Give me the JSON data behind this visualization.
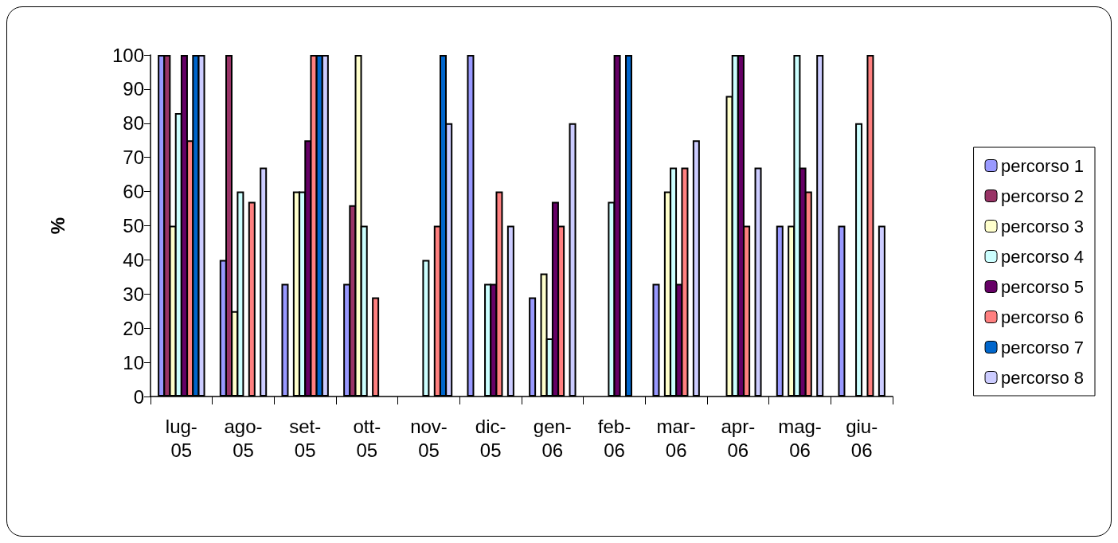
{
  "chart_data": {
    "type": "bar",
    "ylabel": "%",
    "categories": [
      "lug-05",
      "ago-05",
      "set-05",
      "ott-05",
      "nov-05",
      "dic-05",
      "gen-06",
      "feb-06",
      "mar-06",
      "apr-06",
      "mag-06",
      "giu-06"
    ],
    "ylim": [
      0,
      100
    ],
    "yticks": [
      0,
      10,
      20,
      30,
      40,
      50,
      60,
      70,
      80,
      90,
      100
    ],
    "grid": false,
    "legend": "right",
    "series": [
      {
        "name": "percorso 1",
        "color": "#9999ff",
        "values": [
          100,
          40,
          33,
          33,
          null,
          100,
          29,
          null,
          33,
          null,
          50,
          50
        ]
      },
      {
        "name": "percorso 2",
        "color": "#993366",
        "values": [
          100,
          100,
          null,
          56,
          null,
          null,
          null,
          null,
          null,
          null,
          null,
          null
        ]
      },
      {
        "name": "percorso 3",
        "color": "#ffffcc",
        "values": [
          50,
          25,
          60,
          100,
          null,
          null,
          36,
          null,
          60,
          88,
          50,
          null
        ]
      },
      {
        "name": "percorso 4",
        "color": "#ccffff",
        "values": [
          83,
          60,
          60,
          50,
          40,
          33,
          17,
          57,
          67,
          100,
          100,
          80
        ]
      },
      {
        "name": "percorso 5",
        "color": "#660066",
        "values": [
          100,
          null,
          75,
          null,
          null,
          33,
          57,
          100,
          33,
          100,
          67,
          null
        ]
      },
      {
        "name": "percorso 6",
        "color": "#ff8080",
        "values": [
          75,
          57,
          100,
          29,
          50,
          60,
          50,
          null,
          67,
          50,
          60,
          100
        ]
      },
      {
        "name": "percorso 7",
        "color": "#0066cc",
        "values": [
          100,
          null,
          100,
          null,
          100,
          null,
          null,
          100,
          null,
          null,
          null,
          null
        ]
      },
      {
        "name": "percorso 8",
        "color": "#ccccff",
        "values": [
          100,
          67,
          100,
          null,
          80,
          50,
          80,
          null,
          75,
          67,
          100,
          50
        ]
      }
    ]
  }
}
